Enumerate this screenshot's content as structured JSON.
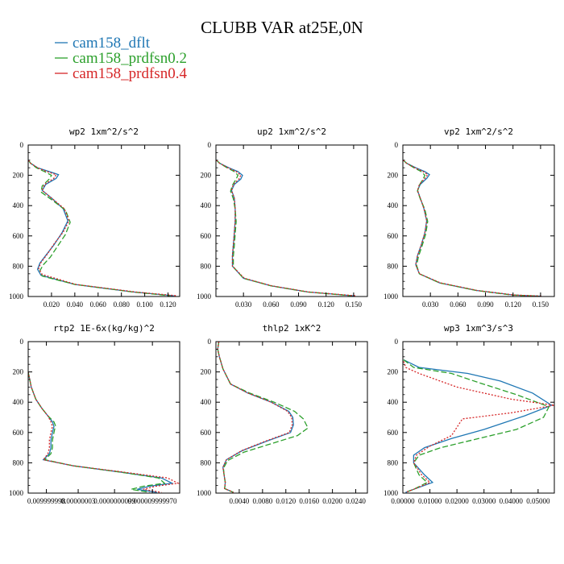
{
  "figure": {
    "title": "CLUBB VAR at25E,0N",
    "legend": [
      {
        "name": "cam158_dflt",
        "color": "#1f77b4",
        "dash": ""
      },
      {
        "name": "cam158_prdfsn0.2",
        "color": "#2ca02c",
        "dash": "7,3"
      },
      {
        "name": "cam158_prdfsn0.4",
        "color": "#d62728",
        "dash": "2,2"
      }
    ]
  },
  "chart_data": [
    {
      "type": "line",
      "title": "wp2  1xm^2/s^2",
      "xlim": [
        0,
        0.13
      ],
      "ylim": [
        1000,
        0
      ],
      "xticks": [
        0.02,
        0.04,
        0.06,
        0.08,
        0.1,
        0.12
      ],
      "xticklabels": [
        "0.020",
        "0.040",
        "0.060",
        "0.080",
        "0.100",
        "0.120"
      ],
      "yticks": [
        0,
        200,
        400,
        600,
        800,
        1000
      ],
      "series": [
        {
          "color": "#1f77b4",
          "dash": "",
          "x": [
            0.0003,
            0.002,
            0.008,
            0.018,
            0.026,
            0.024,
            0.015,
            0.012,
            0.02,
            0.03,
            0.034,
            0.029,
            0.022,
            0.015,
            0.01,
            0.008,
            0.011,
            0.04,
            0.09,
            0.125
          ],
          "y": [
            100,
            120,
            150,
            175,
            195,
            220,
            260,
            300,
            350,
            420,
            500,
            580,
            660,
            730,
            780,
            820,
            860,
            920,
            970,
            995
          ]
        },
        {
          "color": "#2ca02c",
          "dash": "7,3",
          "x": [
            0.0003,
            0.002,
            0.007,
            0.014,
            0.02,
            0.018,
            0.012,
            0.011,
            0.02,
            0.032,
            0.036,
            0.032,
            0.025,
            0.019,
            0.013,
            0.01,
            0.012,
            0.04,
            0.09,
            0.122
          ],
          "y": [
            100,
            120,
            150,
            175,
            200,
            225,
            270,
            310,
            360,
            430,
            510,
            590,
            670,
            740,
            790,
            830,
            865,
            920,
            970,
            995
          ]
        },
        {
          "color": "#d62728",
          "dash": "2,2",
          "x": [
            0.0003,
            0.002,
            0.008,
            0.016,
            0.024,
            0.022,
            0.014,
            0.012,
            0.02,
            0.031,
            0.035,
            0.03,
            0.022,
            0.016,
            0.011,
            0.009,
            0.012,
            0.041,
            0.092,
            0.128
          ],
          "y": [
            100,
            120,
            150,
            175,
            195,
            220,
            260,
            300,
            350,
            420,
            500,
            575,
            655,
            725,
            775,
            815,
            855,
            920,
            970,
            995
          ]
        }
      ]
    },
    {
      "type": "line",
      "title": "up2  1xm^2/s^2",
      "xlim": [
        0,
        0.165
      ],
      "ylim": [
        1000,
        0
      ],
      "xticks": [
        0.03,
        0.06,
        0.09,
        0.12,
        0.15
      ],
      "xticklabels": [
        "0.030",
        "0.060",
        "0.090",
        "0.120",
        "0.150"
      ],
      "yticks": [
        0,
        200,
        400,
        600,
        800,
        1000
      ],
      "series": [
        {
          "color": "#1f77b4",
          "dash": "",
          "x": [
            0.0005,
            0.004,
            0.014,
            0.024,
            0.029,
            0.027,
            0.02,
            0.017,
            0.02,
            0.021,
            0.021,
            0.02,
            0.019,
            0.018,
            0.018,
            0.03,
            0.06,
            0.1,
            0.15
          ],
          "y": [
            100,
            120,
            150,
            175,
            200,
            225,
            260,
            300,
            350,
            420,
            500,
            580,
            660,
            730,
            800,
            880,
            930,
            970,
            995
          ]
        },
        {
          "color": "#2ca02c",
          "dash": "7,3",
          "x": [
            0.0005,
            0.004,
            0.012,
            0.02,
            0.024,
            0.022,
            0.018,
            0.016,
            0.019,
            0.021,
            0.022,
            0.021,
            0.02,
            0.019,
            0.019,
            0.03,
            0.06,
            0.1,
            0.148
          ],
          "y": [
            100,
            120,
            150,
            175,
            200,
            225,
            265,
            305,
            355,
            425,
            505,
            585,
            665,
            735,
            805,
            880,
            930,
            970,
            995
          ]
        },
        {
          "color": "#d62728",
          "dash": "2,2",
          "x": [
            0.0005,
            0.004,
            0.013,
            0.022,
            0.027,
            0.025,
            0.019,
            0.017,
            0.02,
            0.021,
            0.021,
            0.02,
            0.019,
            0.018,
            0.018,
            0.031,
            0.061,
            0.101,
            0.152
          ],
          "y": [
            100,
            120,
            150,
            175,
            200,
            225,
            260,
            300,
            350,
            420,
            500,
            580,
            660,
            730,
            800,
            880,
            930,
            970,
            995
          ]
        }
      ]
    },
    {
      "type": "line",
      "title": "vp2  1xm^2/s^2",
      "xlim": [
        0,
        0.165
      ],
      "ylim": [
        1000,
        0
      ],
      "xticks": [
        0.03,
        0.06,
        0.09,
        0.12,
        0.15
      ],
      "xticklabels": [
        "0.030",
        "0.060",
        "0.090",
        "0.120",
        "0.150"
      ],
      "yticks": [
        0,
        200,
        400,
        600,
        800,
        1000
      ],
      "series": [
        {
          "color": "#1f77b4",
          "dash": "",
          "x": [
            0.0005,
            0.004,
            0.014,
            0.024,
            0.029,
            0.026,
            0.019,
            0.016,
            0.019,
            0.023,
            0.026,
            0.024,
            0.02,
            0.016,
            0.014,
            0.018,
            0.04,
            0.08,
            0.12,
            0.15
          ],
          "y": [
            100,
            120,
            150,
            175,
            195,
            220,
            260,
            300,
            350,
            420,
            500,
            580,
            660,
            730,
            790,
            850,
            910,
            960,
            990,
            998
          ]
        },
        {
          "color": "#2ca02c",
          "dash": "7,3",
          "x": [
            0.0005,
            0.004,
            0.012,
            0.02,
            0.024,
            0.022,
            0.018,
            0.016,
            0.019,
            0.024,
            0.027,
            0.025,
            0.021,
            0.017,
            0.015,
            0.018,
            0.04,
            0.08,
            0.118,
            0.148
          ],
          "y": [
            100,
            120,
            150,
            175,
            200,
            225,
            265,
            305,
            355,
            425,
            505,
            585,
            665,
            735,
            795,
            850,
            910,
            960,
            990,
            998
          ]
        },
        {
          "color": "#d62728",
          "dash": "2,2",
          "x": [
            0.0005,
            0.004,
            0.013,
            0.022,
            0.027,
            0.024,
            0.018,
            0.016,
            0.019,
            0.023,
            0.026,
            0.024,
            0.02,
            0.016,
            0.014,
            0.018,
            0.041,
            0.081,
            0.121,
            0.152
          ],
          "y": [
            100,
            120,
            150,
            175,
            195,
            220,
            260,
            300,
            350,
            420,
            500,
            580,
            660,
            730,
            790,
            850,
            910,
            960,
            990,
            998
          ]
        }
      ]
    },
    {
      "type": "line",
      "title": "rtp2  1E-6x(kg/kg)^2",
      "xlim": [
        0,
        1
      ],
      "ylim": [
        1000,
        0
      ],
      "xticks": [
        0.12,
        0.33,
        0.57,
        0.82
      ],
      "xticklabels": [
        "0.009999998",
        "0.00000003",
        "0.0000000099",
        "0.000009999970"
      ],
      "yticks": [
        0,
        200,
        400,
        600,
        800,
        1000
      ],
      "series": [
        {
          "color": "#1f77b4",
          "dash": "",
          "x": [
            0.0,
            0.02,
            0.05,
            0.09,
            0.13,
            0.16,
            0.17,
            0.16,
            0.15,
            0.15,
            0.14,
            0.1,
            0.3,
            0.6,
            0.88,
            0.95,
            0.8,
            0.72,
            0.85
          ],
          "y": [
            200,
            300,
            380,
            440,
            490,
            530,
            560,
            600,
            650,
            700,
            740,
            780,
            820,
            860,
            900,
            935,
            955,
            975,
            995
          ]
        },
        {
          "color": "#2ca02c",
          "dash": "7,3",
          "x": [
            0.0,
            0.02,
            0.05,
            0.09,
            0.13,
            0.17,
            0.18,
            0.17,
            0.16,
            0.16,
            0.15,
            0.11,
            0.3,
            0.6,
            0.86,
            0.9,
            0.76,
            0.68,
            0.8
          ],
          "y": [
            200,
            300,
            380,
            440,
            490,
            530,
            555,
            600,
            650,
            700,
            740,
            780,
            820,
            860,
            900,
            935,
            955,
            975,
            995
          ]
        },
        {
          "color": "#d62728",
          "dash": "2,2",
          "x": [
            0.0,
            0.02,
            0.05,
            0.09,
            0.13,
            0.15,
            0.16,
            0.15,
            0.14,
            0.14,
            0.13,
            0.1,
            0.3,
            0.62,
            0.92,
            0.99,
            0.84,
            0.76,
            0.88
          ],
          "y": [
            200,
            300,
            380,
            440,
            490,
            530,
            560,
            600,
            650,
            700,
            740,
            780,
            820,
            860,
            900,
            935,
            955,
            975,
            995
          ]
        }
      ]
    },
    {
      "type": "line",
      "title": "thlp2  1xK^2",
      "xlim": [
        0,
        0.026
      ],
      "ylim": [
        1000,
        0
      ],
      "xticks": [
        0.004,
        0.008,
        0.012,
        0.016,
        0.02,
        0.024
      ],
      "xticklabels": [
        "0.0040",
        "0.0080",
        "0.0120",
        "0.0160",
        "0.0200",
        "0.0240"
      ],
      "yticks": [
        0,
        200,
        400,
        600,
        800,
        1000
      ],
      "series": [
        {
          "color": "#1f77b4",
          "dash": "",
          "x": [
            0.0005,
            0.0003,
            0.0006,
            0.0012,
            0.0025,
            0.0055,
            0.0095,
            0.0125,
            0.0132,
            0.0133,
            0.0128,
            0.0085,
            0.0045,
            0.0018,
            0.0012,
            0.0014,
            0.0016,
            0.0015,
            0.003
          ],
          "y": [
            0,
            50,
            100,
            180,
            280,
            340,
            400,
            460,
            500,
            550,
            600,
            660,
            720,
            780,
            830,
            880,
            930,
            970,
            995
          ]
        },
        {
          "color": "#2ca02c",
          "dash": "7,3",
          "x": [
            0.0005,
            0.0003,
            0.0006,
            0.0012,
            0.0025,
            0.0058,
            0.01,
            0.0135,
            0.015,
            0.0158,
            0.014,
            0.009,
            0.0048,
            0.002,
            0.0013,
            0.0014,
            0.0016,
            0.0015,
            0.003
          ],
          "y": [
            0,
            50,
            100,
            180,
            280,
            340,
            400,
            460,
            510,
            570,
            620,
            680,
            730,
            785,
            835,
            880,
            930,
            970,
            995
          ]
        },
        {
          "color": "#d62728",
          "dash": "2,2",
          "x": [
            0.0005,
            0.0003,
            0.0006,
            0.0012,
            0.0025,
            0.0055,
            0.0095,
            0.0123,
            0.013,
            0.0131,
            0.0126,
            0.0083,
            0.0044,
            0.0018,
            0.0012,
            0.0014,
            0.0016,
            0.0015,
            0.003
          ],
          "y": [
            0,
            50,
            100,
            180,
            280,
            340,
            400,
            460,
            500,
            550,
            600,
            660,
            720,
            780,
            830,
            880,
            930,
            970,
            995
          ]
        }
      ]
    },
    {
      "type": "line",
      "title": "wp3  1xm^3/s^3",
      "xlim": [
        0,
        0.056
      ],
      "ylim": [
        1000,
        0
      ],
      "xticks": [
        0.0,
        0.01,
        0.02,
        0.03,
        0.04,
        0.05
      ],
      "xticklabels": [
        "0.00000",
        "0.01000",
        "0.02000",
        "0.03000",
        "0.04000",
        "0.05000"
      ],
      "yticks": [
        0,
        200,
        400,
        600,
        800,
        1000
      ],
      "series": [
        {
          "color": "#1f77b4",
          "dash": "",
          "x": [
            0.0003,
            0.006,
            0.024,
            0.036,
            0.048,
            0.055,
            0.045,
            0.03,
            0.018,
            0.008,
            0.004,
            0.004,
            0.008,
            0.011,
            0.004,
            0.001
          ],
          "y": [
            120,
            170,
            210,
            260,
            340,
            420,
            490,
            580,
            640,
            700,
            750,
            800,
            880,
            930,
            975,
            995
          ]
        },
        {
          "color": "#2ca02c",
          "dash": "7,3",
          "x": [
            0.0003,
            0.004,
            0.018,
            0.028,
            0.042,
            0.054,
            0.052,
            0.042,
            0.028,
            0.014,
            0.006,
            0.004,
            0.006,
            0.009,
            0.004,
            0.001
          ],
          "y": [
            120,
            170,
            210,
            270,
            350,
            430,
            500,
            580,
            640,
            700,
            750,
            800,
            880,
            930,
            975,
            995
          ]
        },
        {
          "color": "#d62728",
          "dash": "2,2",
          "x": [
            0.0003,
            0.001,
            0.006,
            0.02,
            0.04,
            0.056,
            0.04,
            0.022,
            0.018,
            0.01,
            0.005,
            0.004,
            0.007,
            0.01,
            0.004,
            0.001
          ],
          "y": [
            130,
            170,
            210,
            300,
            380,
            420,
            470,
            510,
            620,
            690,
            750,
            800,
            880,
            930,
            975,
            995
          ]
        }
      ]
    }
  ]
}
